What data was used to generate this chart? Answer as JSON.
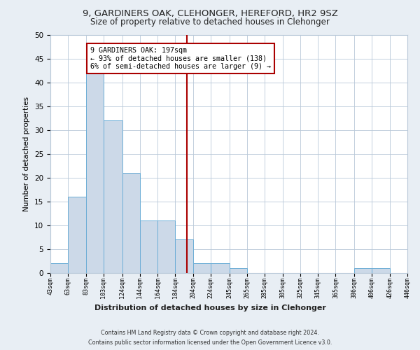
{
  "title": "9, GARDINERS OAK, CLEHONGER, HEREFORD, HR2 9SZ",
  "subtitle": "Size of property relative to detached houses in Clehonger",
  "xlabel": "Distribution of detached houses by size in Clehonger",
  "ylabel": "Number of detached properties",
  "bin_edges": [
    43,
    63,
    83,
    103,
    124,
    144,
    164,
    184,
    204,
    224,
    245,
    265,
    285,
    305,
    325,
    345,
    365,
    386,
    406,
    426,
    446
  ],
  "bar_heights": [
    2,
    16,
    42,
    32,
    21,
    11,
    11,
    7,
    2,
    2,
    1,
    0,
    0,
    0,
    0,
    0,
    0,
    1,
    1,
    0
  ],
  "bar_color": "#ccd9e8",
  "bar_edgecolor": "#6badd6",
  "property_value": 197,
  "vline_color": "#aa0000",
  "annotation_text": "9 GARDINERS OAK: 197sqm\n← 93% of detached houses are smaller (138)\n6% of semi-detached houses are larger (9) →",
  "annotation_box_edgecolor": "#aa0000",
  "ylim": [
    0,
    50
  ],
  "yticks": [
    0,
    5,
    10,
    15,
    20,
    25,
    30,
    35,
    40,
    45,
    50
  ],
  "footer1": "Contains HM Land Registry data © Crown copyright and database right 2024.",
  "footer2": "Contains public sector information licensed under the Open Government Licence v3.0.",
  "bg_color": "#e8eef4",
  "plot_bg_color": "#ffffff",
  "grid_color": "#b8c8d8"
}
